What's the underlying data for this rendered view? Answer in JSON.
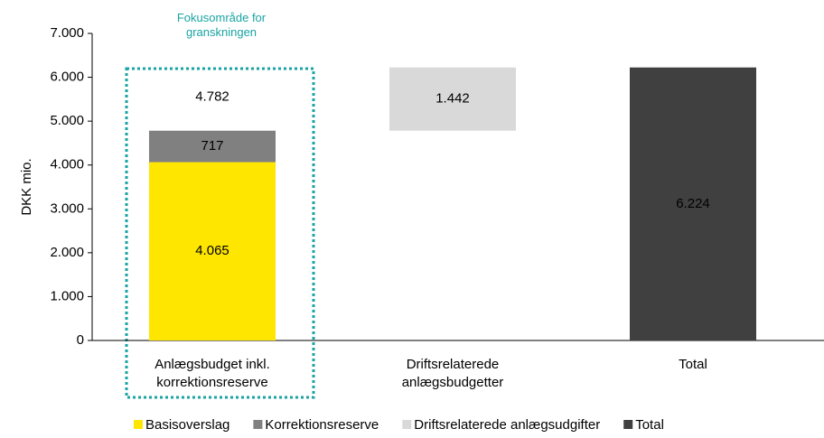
{
  "chart_data": {
    "type": "waterfall",
    "annotation": "Fokusområde for granskningen",
    "y_axis_label": "DKK mio.",
    "categories": [
      "Anlægsbudget inkl. korrektionsreserve",
      "Driftsrelaterede anlægsbudgetter",
      "Total"
    ],
    "series": [
      {
        "name": "Basisoverslag",
        "color": "#ffe600",
        "values": [
          4065,
          null,
          null
        ],
        "value_labels": [
          "4.065",
          null,
          null
        ]
      },
      {
        "name": "Korrektionsreserve",
        "color": "#808080",
        "values": [
          717,
          null,
          null
        ],
        "value_labels": [
          "717",
          null,
          null
        ]
      },
      {
        "name": "Driftsrelaterede anlægsudgifter",
        "color": "#d9d9d9",
        "values": [
          null,
          1442,
          null
        ],
        "value_labels": [
          null,
          "1.442",
          null
        ]
      },
      {
        "name": "Total",
        "color": "#404040",
        "values": [
          null,
          null,
          6224
        ],
        "value_labels": [
          null,
          null,
          "6.224"
        ]
      }
    ],
    "category_totals": [
      4782,
      null,
      null
    ],
    "category_total_labels": [
      "4.782",
      null,
      null
    ],
    "ylim": [
      0,
      7000
    ],
    "yticks": [
      0,
      {
        "value": 1000,
        "label": "1.000"
      },
      {
        "value": 2000,
        "label": "2.000"
      },
      {
        "value": 3000,
        "label": "3.000"
      },
      {
        "value": 4000,
        "label": "4.000"
      },
      {
        "value": 5000,
        "label": "5.000"
      },
      {
        "value": 6000,
        "label": "6.000"
      },
      {
        "value": 7000,
        "label": "7.000"
      }
    ],
    "grid": false
  }
}
